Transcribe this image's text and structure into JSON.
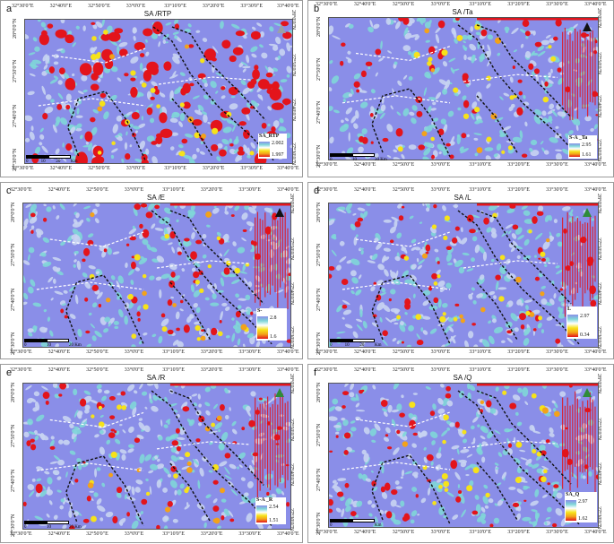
{
  "panels": [
    {
      "letter": "a",
      "title": "SA /RTP",
      "legend": {
        "label": "SA_RTP",
        "max": "2.002",
        "min": "1.997"
      },
      "top_ticks": [
        "32°30'0\"E",
        "32°40'0\"E",
        "32°50'0\"E",
        "33°0'0\"E",
        "33°10'0\"E",
        "33°20'0\"E",
        "33°30'0\"E",
        "33°40'0\"E"
      ],
      "bottom_ticks": [
        "32°30'0\"E",
        "32°40'0\"E",
        "32°50'0\"E",
        "33°0'0\"E",
        "33°10'0\"E",
        "33°20'0\"E",
        "33°30'0\"E",
        "33°40'0\"E"
      ],
      "lat_ticks": [
        "28°0'0\"N",
        "27°50'0\"N",
        "27°40'0\"N",
        "27°30'0\"N"
      ],
      "scale": [
        "0",
        "10",
        "20",
        "Km"
      ],
      "north_color": "#9aa0a6"
    },
    {
      "letter": "b",
      "title": "SA /Ta",
      "legend": {
        "label": "S-A _Ta",
        "max": "2.95",
        "min": "1.61"
      },
      "top_ticks": [
        "32°30'0\"E",
        "32°40'0\"E",
        "32°50'0\"E",
        "33°0'0\"E",
        "33°10'0\"E",
        "33°20'0\"E",
        "33°30'0\"E",
        "33°40'0\"E"
      ],
      "bottom_ticks": [
        "32°30'0\"E",
        "32°40'0\"E",
        "32°50'0\"E",
        "33°0'0\"E",
        "33°10'0\"E",
        "33°20'0\"E",
        "33°30'0\"E",
        "33°40'0\"E"
      ],
      "lat_ticks": [
        "28°0'0\"N",
        "27°50'0\"N",
        "27°40'0\"N",
        "27°30'0\"N"
      ],
      "scale": [
        "0",
        "10",
        "20 Km"
      ],
      "north_color": "#111111"
    },
    {
      "letter": "c",
      "title": "SA /E",
      "legend": {
        "label": "S-",
        "max": "2.8",
        "min": "1.6"
      },
      "top_ticks": [
        "32°30'0\"E",
        "32°40'0\"E",
        "32°50'0\"E",
        "33°0'0\"E",
        "33°10'0\"E",
        "33°20'0\"E",
        "33°30'0\"E",
        "33°40'0\"E"
      ],
      "bottom_ticks": [
        "32°30'0\"E",
        "32°40'0\"E",
        "32°50'0\"E",
        "33°0'0\"E",
        "33°10'0\"E",
        "33°20'0\"E",
        "33°30'0\"E",
        "33°40'0\"E"
      ],
      "lat_ticks": [
        "28°0'0\"N",
        "27°50'0\"N",
        "27°40'0\"N",
        "27°30'0\"N"
      ],
      "scale": [
        "0",
        "10",
        "20 Km"
      ],
      "north_color": "#111111"
    },
    {
      "letter": "d",
      "title": "SA /L",
      "legend": {
        "label": "L",
        "max": "2.97",
        "min": "0.34"
      },
      "top_ticks": [
        "32°30'0\"E",
        "32°40'0\"E",
        "32°50'0\"E",
        "33°0'0\"E",
        "33°10'0\"E",
        "33°20'0\"E",
        "33°30'0\"E",
        "33°40'0\"E"
      ],
      "bottom_ticks": [
        "32°30'0\"E",
        "32°40'0\"E",
        "32°50'0\"E",
        "33°0'0\"E",
        "33°10'0\"E",
        "33°20'0\"E",
        "33°30'0\"E",
        "33°40'0\"E"
      ],
      "lat_ticks": [
        "28°0'0\"N",
        "27°50'0\"N",
        "27°40'0\"N",
        "27°30'0\"N"
      ],
      "scale": [
        "0",
        "10",
        "20",
        "Km"
      ],
      "north_color": "#2e8b3a"
    },
    {
      "letter": "e",
      "title": "SA /R",
      "legend": {
        "label": "S-A _R",
        "max": "2.54",
        "min": "1.51"
      },
      "top_ticks": [
        "32°30'0\"E",
        "32°40'0\"E",
        "32°50'0\"E",
        "33°0'0\"E",
        "33°10'0\"E",
        "33°20'0\"E",
        "33°30'0\"E",
        "33°40'0\"E"
      ],
      "bottom_ticks": [
        "32°30'0\"E",
        "32°40'0\"E",
        "32°50'0\"E",
        "33°0'0\"E",
        "33°10'0\"E",
        "33°20'0\"E",
        "33°30'0\"E",
        "33°40'0\"E"
      ],
      "lat_ticks": [
        "28°0'0\"N",
        "27°50'0\"N",
        "27°40'0\"N",
        "27°30'0\"N"
      ],
      "scale": [
        "0",
        "10",
        "20 Km"
      ],
      "north_color": "#2e8b3a"
    },
    {
      "letter": "f",
      "title": "SA /Q",
      "legend": {
        "label": "SA_Q",
        "max": "2.97",
        "min": "1.62"
      },
      "top_ticks": [
        "32°30'0\"E",
        "32°40'0\"E",
        "32°50'0\"E",
        "33°0'0\"E",
        "33°10'0\"E",
        "33°20'0\"E",
        "33°30'0\"E",
        "33°40'0\"E"
      ],
      "bottom_ticks": [
        "32°30'0\"E",
        "32°40'0\"E",
        "32°50'0\"E",
        "33°0'0\"E",
        "33°10'0\"E",
        "33°20'0\"E",
        "33°30'0\"E",
        "33°40'0\"E"
      ],
      "lat_ticks": [
        "28°0'0\"N",
        "27°50'0\"N",
        "27°40'0\"N",
        "27°30'0\"N"
      ],
      "scale": [
        "0",
        "Km"
      ],
      "north_color": "#2e8b3a"
    }
  ],
  "colors": {
    "base": "#8a8ee8",
    "light": "#c8d4f2",
    "cyan": "#7fd6d8",
    "red": "#e3141b",
    "yellow": "#f6e21a",
    "orange": "#f3a21a",
    "line": "#111111",
    "white_line": "#ffffff"
  }
}
